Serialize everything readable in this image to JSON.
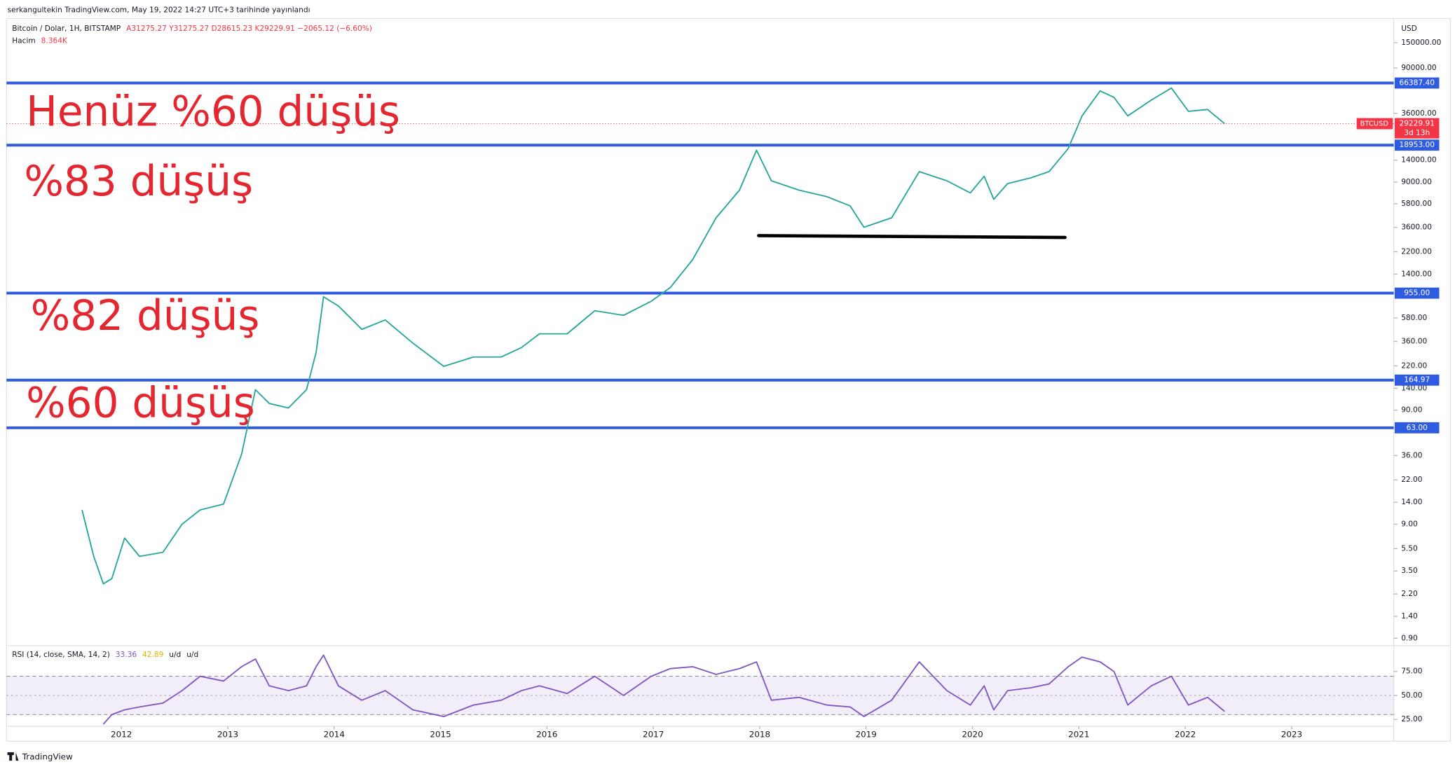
{
  "header": {
    "published": "serkangultekin TradingView.com, May 19, 2022 14:27 UTC+3 tarihinde yayınlandı"
  },
  "footer": {
    "brand": "TradingView"
  },
  "chart_data": [
    {
      "type": "line",
      "title": "Bitcoin / Dolar, 1H, BITSTAMP",
      "ohlc": "A31275.27  Y31275.27  D28615.23  K29229.91  −2065.12 (−6.60%)",
      "volume_label": "Hacim",
      "volume_value": "8.364K",
      "y_axis_label": "USD",
      "log_scale": true,
      "grid": false,
      "x": [
        2011.63,
        2011.74,
        2011.83,
        2011.91,
        2012.03,
        2012.17,
        2012.39,
        2012.57,
        2012.74,
        2012.96,
        2013.13,
        2013.26,
        2013.39,
        2013.57,
        2013.74,
        2013.83,
        2013.9,
        2014.04,
        2014.26,
        2014.48,
        2014.74,
        2015.03,
        2015.31,
        2015.57,
        2015.76,
        2015.93,
        2016.19,
        2016.45,
        2016.72,
        2016.98,
        2017.16,
        2017.37,
        2017.59,
        2017.81,
        2017.97,
        2018.11,
        2018.37,
        2018.63,
        2018.85,
        2018.98,
        2019.24,
        2019.5,
        2019.76,
        2019.98,
        2020.11,
        2020.2,
        2020.33,
        2020.55,
        2020.72,
        2020.9,
        2021.03,
        2021.2,
        2021.33,
        2021.46,
        2021.68,
        2021.87,
        2022.03,
        2022.21,
        2022.37
      ],
      "xlim": [
        2010.92,
        2023.96
      ],
      "xticks": [
        2012,
        2013,
        2014,
        2015,
        2016,
        2017,
        2018,
        2019,
        2020,
        2021,
        2022,
        2023
      ],
      "series": [
        {
          "name": "BTCUSD",
          "color": "#26a69a",
          "values": [
            12,
            4.7,
            2.7,
            3,
            6.8,
            4.7,
            5.1,
            9,
            12,
            13.5,
            37,
            136,
            103,
            94,
            136,
            288,
            887,
            736,
            460,
            556,
            348,
            218,
            263,
            263,
            318,
            420,
            420,
            670,
            610,
            810,
            1070,
            1880,
            4370,
            7640,
            17100,
            9220,
            7640,
            6700,
            5560,
            3610,
            4370,
            11100,
            9220,
            7220,
            10100,
            6340,
            8720,
            9800,
            11100,
            17700,
            34200,
            56600,
            49700,
            34200,
            47000,
            60000,
            37500,
            38900,
            29229.91
          ]
        }
      ],
      "last_price": {
        "value": 29229.91,
        "countdown": "3d 13h",
        "color": "#f23645"
      },
      "levels": {
        "color": "#2f5be0",
        "values": [
          66387.4,
          18953,
          955,
          164.97,
          63
        ],
        "value_labels": [
          "66387.40",
          "18953.00",
          "955.00",
          "164.97",
          "63.00"
        ]
      },
      "trend_line": {
        "x": [
          2017.99,
          2020.87
        ],
        "y": [
          3050,
          2940
        ],
        "color": "#000000"
      },
      "annotation_color": "#e3262f",
      "annotations": [
        "Henüz %60 düşüş",
        "%83 düşüş",
        "%82 düşüş",
        "%60 düşüş"
      ],
      "ylim": [
        0.79,
        235000
      ],
      "yticks": [
        {
          "value": 150000,
          "label": "150000.00"
        },
        {
          "value": 90000,
          "label": "90000.00"
        },
        {
          "value": 36000,
          "label": "36000.00"
        },
        {
          "value": 14000,
          "label": "14000.00"
        },
        {
          "value": 9000,
          "label": "9000.00"
        },
        {
          "value": 5800,
          "label": "5800.00"
        },
        {
          "value": 3600,
          "label": "3600.00"
        },
        {
          "value": 2200,
          "label": "2200.00"
        },
        {
          "value": 1400,
          "label": "1400.00"
        },
        {
          "value": 580,
          "label": "580.00"
        },
        {
          "value": 360,
          "label": "360.00"
        },
        {
          "value": 220,
          "label": "220.00"
        },
        {
          "value": 140,
          "label": "140.00"
        },
        {
          "value": 90,
          "label": "90.00"
        },
        {
          "value": 36,
          "label": "36.00"
        },
        {
          "value": 22,
          "label": "22.00"
        },
        {
          "value": 14,
          "label": "14.00"
        },
        {
          "value": 9,
          "label": "9.00"
        },
        {
          "value": 5.5,
          "label": "5.50"
        },
        {
          "value": 3.5,
          "label": "3.50"
        },
        {
          "value": 2.2,
          "label": "2.20"
        },
        {
          "value": 1.4,
          "label": "1.40"
        },
        {
          "value": 0.9,
          "label": "0.90"
        }
      ]
    },
    {
      "type": "line",
      "title": "RSI (14, close, SMA, 14, 2)",
      "legend_values": [
        33.36,
        42.89
      ],
      "legend_colors": [
        "#7e57c2",
        "#e0b400"
      ],
      "legend_extra": [
        "u/d",
        "u/d"
      ],
      "log_scale": false,
      "x": [
        2011.63,
        2011.74,
        2011.83,
        2011.91,
        2012.03,
        2012.17,
        2012.39,
        2012.57,
        2012.74,
        2012.96,
        2013.13,
        2013.26,
        2013.39,
        2013.57,
        2013.74,
        2013.83,
        2013.9,
        2014.04,
        2014.26,
        2014.48,
        2014.74,
        2015.03,
        2015.31,
        2015.57,
        2015.76,
        2015.93,
        2016.19,
        2016.45,
        2016.72,
        2016.98,
        2017.16,
        2017.37,
        2017.59,
        2017.81,
        2017.97,
        2018.11,
        2018.37,
        2018.63,
        2018.85,
        2018.98,
        2019.24,
        2019.5,
        2019.76,
        2019.98,
        2020.11,
        2020.2,
        2020.33,
        2020.55,
        2020.72,
        2020.9,
        2021.03,
        2021.2,
        2021.33,
        2021.46,
        2021.68,
        2021.87,
        2022.03,
        2022.21,
        2022.37
      ],
      "xlim": [
        2010.92,
        2023.96
      ],
      "series": [
        {
          "name": "RSI",
          "color": "#7e57c2",
          "values": [
            null,
            null,
            20,
            30,
            35,
            38,
            42,
            55,
            70,
            65,
            80,
            88,
            60,
            55,
            60,
            80,
            92,
            60,
            45,
            55,
            35,
            28,
            40,
            45,
            55,
            60,
            52,
            70,
            50,
            70,
            78,
            80,
            72,
            78,
            85,
            45,
            48,
            40,
            38,
            28,
            45,
            85,
            55,
            40,
            60,
            35,
            55,
            58,
            62,
            80,
            90,
            85,
            75,
            40,
            60,
            70,
            40,
            48,
            33.36
          ]
        }
      ],
      "band": [
        30,
        70
      ],
      "ylim": [
        11,
        101
      ],
      "yticks": [
        {
          "value": 75,
          "label": "75.00"
        },
        {
          "value": 50,
          "label": "50.00"
        },
        {
          "value": 25,
          "label": "25.00"
        }
      ]
    }
  ]
}
